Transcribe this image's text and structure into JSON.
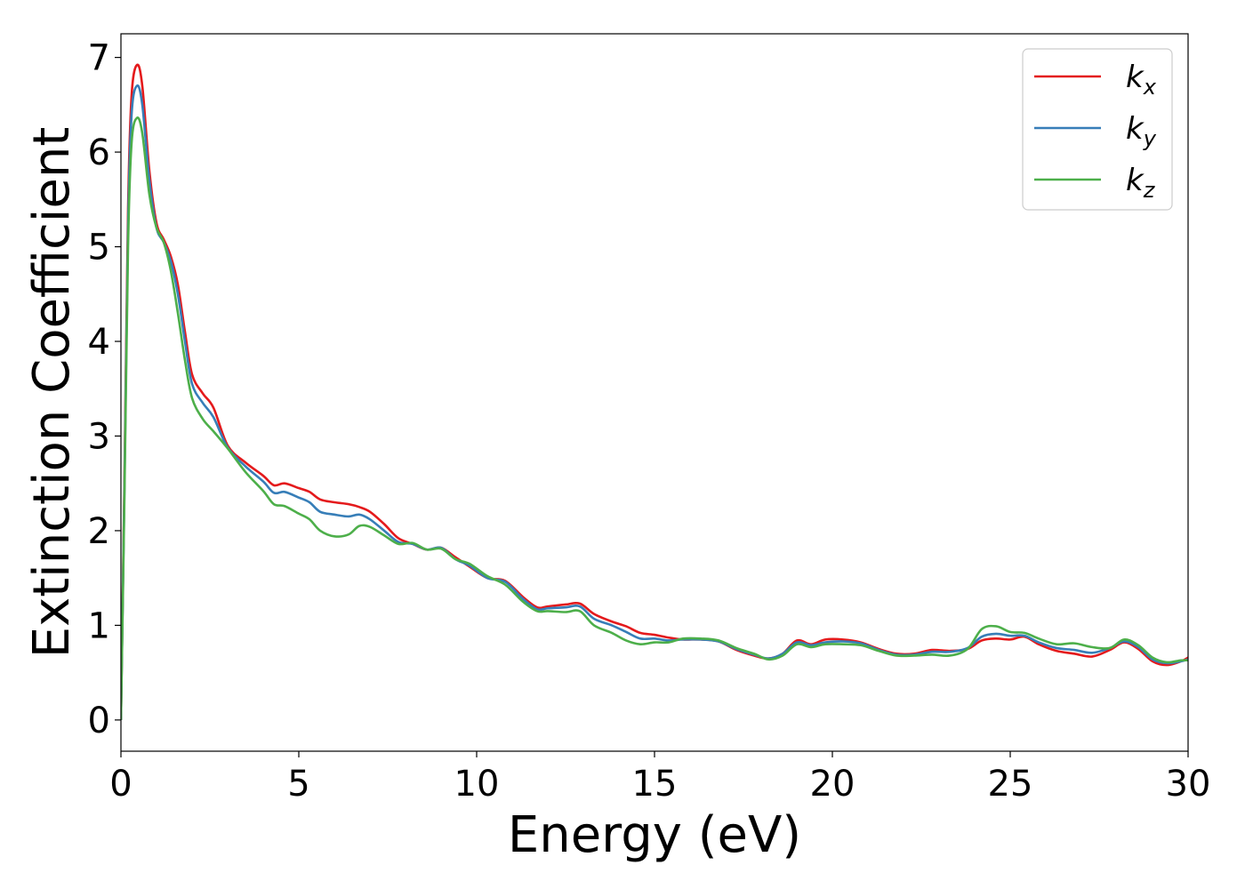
{
  "chart_data": {
    "type": "line",
    "xlabel": "Energy (eV)",
    "ylabel": "Extinction Coefficient",
    "xlim": [
      0,
      30
    ],
    "ylim": [
      -0.33,
      7.25
    ],
    "xticks": [
      0,
      5,
      10,
      15,
      20,
      25,
      30
    ],
    "yticks": [
      0,
      1,
      2,
      3,
      4,
      5,
      6,
      7
    ],
    "grid": false,
    "legend_position": "top-right",
    "series": [
      {
        "name": "k_x",
        "label_base": "k",
        "label_sub": "x",
        "color": "#e41a1c",
        "points": [
          [
            0,
            0
          ],
          [
            0.1,
            2.6
          ],
          [
            0.2,
            5.4
          ],
          [
            0.3,
            6.6
          ],
          [
            0.45,
            6.92
          ],
          [
            0.6,
            6.7
          ],
          [
            0.8,
            5.8
          ],
          [
            1.0,
            5.25
          ],
          [
            1.2,
            5.08
          ],
          [
            1.4,
            4.9
          ],
          [
            1.6,
            4.6
          ],
          [
            1.8,
            4.1
          ],
          [
            2.0,
            3.65
          ],
          [
            2.3,
            3.45
          ],
          [
            2.6,
            3.3
          ],
          [
            3.0,
            2.9
          ],
          [
            3.5,
            2.72
          ],
          [
            4.0,
            2.58
          ],
          [
            4.3,
            2.48
          ],
          [
            4.6,
            2.5
          ],
          [
            5.0,
            2.45
          ],
          [
            5.3,
            2.41
          ],
          [
            5.6,
            2.33
          ],
          [
            6.0,
            2.3
          ],
          [
            6.4,
            2.28
          ],
          [
            6.7,
            2.25
          ],
          [
            7.0,
            2.2
          ],
          [
            7.4,
            2.07
          ],
          [
            7.8,
            1.92
          ],
          [
            8.2,
            1.86
          ],
          [
            8.6,
            1.8
          ],
          [
            9.0,
            1.82
          ],
          [
            9.4,
            1.72
          ],
          [
            9.8,
            1.62
          ],
          [
            10.3,
            1.5
          ],
          [
            10.8,
            1.47
          ],
          [
            11.3,
            1.3
          ],
          [
            11.7,
            1.19
          ],
          [
            12.0,
            1.2
          ],
          [
            12.5,
            1.22
          ],
          [
            12.9,
            1.23
          ],
          [
            13.3,
            1.12
          ],
          [
            13.8,
            1.04
          ],
          [
            14.2,
            0.99
          ],
          [
            14.6,
            0.92
          ],
          [
            15.0,
            0.9
          ],
          [
            15.4,
            0.87
          ],
          [
            15.8,
            0.85
          ],
          [
            16.3,
            0.85
          ],
          [
            16.8,
            0.83
          ],
          [
            17.3,
            0.74
          ],
          [
            17.8,
            0.68
          ],
          [
            18.2,
            0.65
          ],
          [
            18.6,
            0.7
          ],
          [
            19.0,
            0.84
          ],
          [
            19.4,
            0.8
          ],
          [
            19.8,
            0.85
          ],
          [
            20.3,
            0.85
          ],
          [
            20.8,
            0.82
          ],
          [
            21.3,
            0.75
          ],
          [
            21.8,
            0.7
          ],
          [
            22.3,
            0.7
          ],
          [
            22.8,
            0.74
          ],
          [
            23.3,
            0.73
          ],
          [
            23.8,
            0.75
          ],
          [
            24.2,
            0.84
          ],
          [
            24.6,
            0.86
          ],
          [
            25.0,
            0.85
          ],
          [
            25.4,
            0.88
          ],
          [
            25.8,
            0.8
          ],
          [
            26.3,
            0.73
          ],
          [
            26.8,
            0.7
          ],
          [
            27.3,
            0.67
          ],
          [
            27.8,
            0.74
          ],
          [
            28.2,
            0.82
          ],
          [
            28.6,
            0.75
          ],
          [
            29.0,
            0.62
          ],
          [
            29.4,
            0.58
          ],
          [
            29.8,
            0.62
          ],
          [
            30.0,
            0.66
          ]
        ]
      },
      {
        "name": "k_y",
        "label_base": "k",
        "label_sub": "y",
        "color": "#377eb8",
        "points": [
          [
            0,
            0
          ],
          [
            0.1,
            2.5
          ],
          [
            0.2,
            5.2
          ],
          [
            0.3,
            6.4
          ],
          [
            0.45,
            6.7
          ],
          [
            0.6,
            6.5
          ],
          [
            0.8,
            5.7
          ],
          [
            1.0,
            5.2
          ],
          [
            1.2,
            5.05
          ],
          [
            1.4,
            4.85
          ],
          [
            1.6,
            4.5
          ],
          [
            1.8,
            4.0
          ],
          [
            2.0,
            3.55
          ],
          [
            2.3,
            3.35
          ],
          [
            2.6,
            3.2
          ],
          [
            3.0,
            2.88
          ],
          [
            3.5,
            2.68
          ],
          [
            4.0,
            2.52
          ],
          [
            4.3,
            2.4
          ],
          [
            4.6,
            2.41
          ],
          [
            5.0,
            2.35
          ],
          [
            5.3,
            2.3
          ],
          [
            5.6,
            2.2
          ],
          [
            6.0,
            2.17
          ],
          [
            6.4,
            2.15
          ],
          [
            6.7,
            2.17
          ],
          [
            7.0,
            2.12
          ],
          [
            7.4,
            2.0
          ],
          [
            7.8,
            1.88
          ],
          [
            8.2,
            1.86
          ],
          [
            8.6,
            1.8
          ],
          [
            9.0,
            1.82
          ],
          [
            9.4,
            1.7
          ],
          [
            9.8,
            1.63
          ],
          [
            10.3,
            1.5
          ],
          [
            10.8,
            1.46
          ],
          [
            11.3,
            1.28
          ],
          [
            11.7,
            1.17
          ],
          [
            12.0,
            1.18
          ],
          [
            12.5,
            1.19
          ],
          [
            12.9,
            1.2
          ],
          [
            13.3,
            1.07
          ],
          [
            13.8,
            1.0
          ],
          [
            14.2,
            0.93
          ],
          [
            14.6,
            0.86
          ],
          [
            15.0,
            0.86
          ],
          [
            15.4,
            0.84
          ],
          [
            15.8,
            0.85
          ],
          [
            16.3,
            0.85
          ],
          [
            16.8,
            0.83
          ],
          [
            17.3,
            0.75
          ],
          [
            17.8,
            0.69
          ],
          [
            18.2,
            0.65
          ],
          [
            18.6,
            0.7
          ],
          [
            19.0,
            0.82
          ],
          [
            19.4,
            0.79
          ],
          [
            19.8,
            0.82
          ],
          [
            20.3,
            0.83
          ],
          [
            20.8,
            0.81
          ],
          [
            21.3,
            0.74
          ],
          [
            21.8,
            0.69
          ],
          [
            22.3,
            0.69
          ],
          [
            22.8,
            0.72
          ],
          [
            23.3,
            0.72
          ],
          [
            23.8,
            0.76
          ],
          [
            24.2,
            0.88
          ],
          [
            24.6,
            0.91
          ],
          [
            25.0,
            0.89
          ],
          [
            25.4,
            0.89
          ],
          [
            25.8,
            0.82
          ],
          [
            26.3,
            0.76
          ],
          [
            26.8,
            0.74
          ],
          [
            27.3,
            0.71
          ],
          [
            27.8,
            0.76
          ],
          [
            28.2,
            0.83
          ],
          [
            28.6,
            0.77
          ],
          [
            29.0,
            0.64
          ],
          [
            29.4,
            0.6
          ],
          [
            29.8,
            0.62
          ],
          [
            30.0,
            0.64
          ]
        ]
      },
      {
        "name": "k_z",
        "label_base": "k",
        "label_sub": "z",
        "color": "#4daf4a",
        "points": [
          [
            0,
            0
          ],
          [
            0.1,
            2.4
          ],
          [
            0.2,
            5.0
          ],
          [
            0.3,
            6.1
          ],
          [
            0.45,
            6.36
          ],
          [
            0.6,
            6.2
          ],
          [
            0.8,
            5.55
          ],
          [
            1.0,
            5.2
          ],
          [
            1.2,
            5.05
          ],
          [
            1.4,
            4.75
          ],
          [
            1.6,
            4.3
          ],
          [
            1.8,
            3.8
          ],
          [
            2.0,
            3.4
          ],
          [
            2.3,
            3.18
          ],
          [
            2.6,
            3.05
          ],
          [
            3.0,
            2.87
          ],
          [
            3.5,
            2.62
          ],
          [
            4.0,
            2.42
          ],
          [
            4.3,
            2.28
          ],
          [
            4.6,
            2.26
          ],
          [
            5.0,
            2.18
          ],
          [
            5.3,
            2.12
          ],
          [
            5.6,
            2.0
          ],
          [
            6.0,
            1.94
          ],
          [
            6.4,
            1.96
          ],
          [
            6.7,
            2.05
          ],
          [
            7.0,
            2.04
          ],
          [
            7.4,
            1.95
          ],
          [
            7.8,
            1.86
          ],
          [
            8.2,
            1.87
          ],
          [
            8.6,
            1.8
          ],
          [
            9.0,
            1.81
          ],
          [
            9.4,
            1.7
          ],
          [
            9.8,
            1.65
          ],
          [
            10.3,
            1.52
          ],
          [
            10.8,
            1.43
          ],
          [
            11.3,
            1.25
          ],
          [
            11.7,
            1.15
          ],
          [
            12.0,
            1.15
          ],
          [
            12.5,
            1.14
          ],
          [
            12.9,
            1.15
          ],
          [
            13.3,
            1.0
          ],
          [
            13.8,
            0.92
          ],
          [
            14.2,
            0.84
          ],
          [
            14.6,
            0.8
          ],
          [
            15.0,
            0.82
          ],
          [
            15.4,
            0.82
          ],
          [
            15.8,
            0.86
          ],
          [
            16.3,
            0.86
          ],
          [
            16.8,
            0.84
          ],
          [
            17.3,
            0.76
          ],
          [
            17.8,
            0.7
          ],
          [
            18.2,
            0.64
          ],
          [
            18.6,
            0.68
          ],
          [
            19.0,
            0.8
          ],
          [
            19.4,
            0.77
          ],
          [
            19.8,
            0.8
          ],
          [
            20.3,
            0.8
          ],
          [
            20.8,
            0.79
          ],
          [
            21.3,
            0.73
          ],
          [
            21.8,
            0.68
          ],
          [
            22.3,
            0.68
          ],
          [
            22.8,
            0.69
          ],
          [
            23.3,
            0.68
          ],
          [
            23.8,
            0.75
          ],
          [
            24.2,
            0.96
          ],
          [
            24.6,
            0.99
          ],
          [
            25.0,
            0.93
          ],
          [
            25.4,
            0.92
          ],
          [
            25.8,
            0.86
          ],
          [
            26.3,
            0.8
          ],
          [
            26.8,
            0.81
          ],
          [
            27.3,
            0.77
          ],
          [
            27.8,
            0.76
          ],
          [
            28.2,
            0.85
          ],
          [
            28.6,
            0.79
          ],
          [
            29.0,
            0.66
          ],
          [
            29.4,
            0.61
          ],
          [
            29.8,
            0.63
          ],
          [
            30.0,
            0.63
          ]
        ]
      }
    ]
  }
}
